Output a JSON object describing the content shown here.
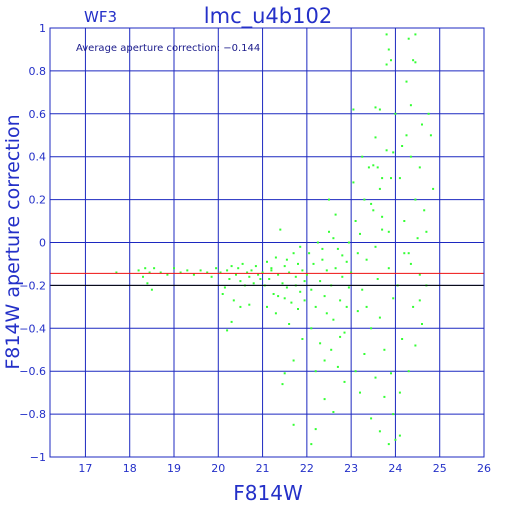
{
  "chart_data": {
    "type": "scatter",
    "header_left": "WF3",
    "title": "lmc_u4b102",
    "annotation": "Average aperture correction: −0.144",
    "xlabel": "F814W",
    "ylabel": "F814W aperture correction",
    "xlim": [
      16.2,
      26
    ],
    "ylim": [
      -1,
      1
    ],
    "x_ticks": [
      17,
      18,
      19,
      20,
      21,
      22,
      23,
      24,
      25,
      26
    ],
    "x_tick_labels": [
      "17",
      "18",
      "19",
      "20",
      "21",
      "22",
      "23",
      "24",
      "25",
      "26"
    ],
    "y_ticks": [
      -1,
      -0.8,
      -0.6,
      -0.4,
      -0.2,
      0,
      0.2,
      0.4,
      0.6,
      0.8,
      1
    ],
    "y_tick_labels": [
      "−1",
      "−0.8",
      "−0.6",
      "−0.4",
      "−0.2",
      "0",
      "0.2",
      "0.4",
      "0.6",
      "0.8",
      "1"
    ],
    "grid": true,
    "colors": {
      "frame": "#1c28c0",
      "grid": "#1c28c0",
      "text": "#2430c8",
      "points": "#33ff33",
      "reference_line": "#ee1111",
      "black_line": "#000000"
    },
    "reference_lines": [
      {
        "y": -0.144,
        "color": "#ee1111"
      },
      {
        "y": -0.2,
        "color": "#000000"
      }
    ],
    "series": [
      {
        "points": [
          [
            17.7,
            -0.14
          ],
          [
            18.2,
            -0.13
          ],
          [
            18.3,
            -0.16
          ],
          [
            18.35,
            -0.12
          ],
          [
            18.4,
            -0.19
          ],
          [
            18.45,
            -0.14
          ],
          [
            18.5,
            -0.22
          ],
          [
            18.55,
            -0.12
          ],
          [
            18.7,
            -0.14
          ],
          [
            18.85,
            -0.15
          ],
          [
            19.0,
            -0.12
          ],
          [
            19.15,
            -0.14
          ],
          [
            19.3,
            -0.13
          ],
          [
            19.45,
            -0.15
          ],
          [
            19.6,
            -0.13
          ],
          [
            19.75,
            -0.14
          ],
          [
            19.85,
            -0.16
          ],
          [
            19.95,
            -0.12
          ],
          [
            20.05,
            -0.14
          ],
          [
            20.1,
            -0.24
          ],
          [
            20.15,
            -0.21
          ],
          [
            20.2,
            -0.13
          ],
          [
            20.25,
            -0.17
          ],
          [
            20.3,
            -0.11
          ],
          [
            20.35,
            -0.27
          ],
          [
            20.4,
            -0.15
          ],
          [
            20.45,
            -0.12
          ],
          [
            20.5,
            -0.18
          ],
          [
            20.55,
            -0.1
          ],
          [
            20.6,
            -0.2
          ],
          [
            20.65,
            -0.14
          ],
          [
            20.7,
            -0.16
          ],
          [
            20.75,
            -0.13
          ],
          [
            20.8,
            -0.19
          ],
          [
            20.85,
            -0.11
          ],
          [
            20.9,
            -0.15
          ],
          [
            20.95,
            -0.17
          ],
          [
            20.2,
            -0.41
          ],
          [
            20.3,
            -0.37
          ],
          [
            20.5,
            -0.3
          ],
          [
            20.7,
            -0.29
          ],
          [
            21.0,
            -0.14
          ],
          [
            21.05,
            -0.2
          ],
          [
            21.1,
            -0.09
          ],
          [
            21.15,
            -0.17
          ],
          [
            21.2,
            -0.13
          ],
          [
            21.25,
            -0.24
          ],
          [
            21.3,
            -0.07
          ],
          [
            21.35,
            -0.15
          ],
          [
            21.4,
            0.06
          ],
          [
            21.45,
            -0.19
          ],
          [
            21.5,
            -0.11
          ],
          [
            21.55,
            -0.21
          ],
          [
            21.6,
            -0.14
          ],
          [
            21.65,
            -0.28
          ],
          [
            21.7,
            -0.05
          ],
          [
            21.75,
            -0.16
          ],
          [
            21.8,
            -0.1
          ],
          [
            21.85,
            -0.23
          ],
          [
            21.9,
            -0.13
          ],
          [
            21.95,
            -0.18
          ],
          [
            21.1,
            -0.3
          ],
          [
            21.3,
            -0.33
          ],
          [
            21.5,
            -0.26
          ],
          [
            21.6,
            -0.38
          ],
          [
            21.8,
            -0.31
          ],
          [
            21.9,
            -0.45
          ],
          [
            21.7,
            -0.55
          ],
          [
            21.5,
            -0.61
          ],
          [
            21.45,
            -0.66
          ],
          [
            21.7,
            -0.85
          ],
          [
            21.2,
            -0.12
          ],
          [
            21.35,
            -0.25
          ],
          [
            21.55,
            -0.08
          ],
          [
            21.75,
            -0.2
          ],
          [
            21.85,
            -0.02
          ],
          [
            21.95,
            -0.27
          ],
          [
            22.0,
            -0.15
          ],
          [
            22.05,
            -0.05
          ],
          [
            22.1,
            -0.22
          ],
          [
            22.15,
            -0.1
          ],
          [
            22.2,
            -0.3
          ],
          [
            22.25,
            0.0
          ],
          [
            22.3,
            -0.18
          ],
          [
            22.35,
            -0.08
          ],
          [
            22.4,
            -0.25
          ],
          [
            22.45,
            -0.13
          ],
          [
            22.5,
            0.05
          ],
          [
            22.55,
            -0.2
          ],
          [
            22.6,
            -0.36
          ],
          [
            22.65,
            -0.12
          ],
          [
            22.7,
            -0.03
          ],
          [
            22.75,
            -0.27
          ],
          [
            22.8,
            -0.16
          ],
          [
            22.85,
            -0.42
          ],
          [
            22.9,
            -0.09
          ],
          [
            22.95,
            -0.21
          ],
          [
            22.1,
            -0.4
          ],
          [
            22.3,
            -0.47
          ],
          [
            22.4,
            -0.55
          ],
          [
            22.55,
            -0.5
          ],
          [
            22.7,
            -0.58
          ],
          [
            22.85,
            -0.65
          ],
          [
            22.2,
            -0.6
          ],
          [
            22.4,
            -0.73
          ],
          [
            22.6,
            -0.79
          ],
          [
            22.1,
            -0.94
          ],
          [
            22.2,
            -0.87
          ],
          [
            22.35,
            -0.03
          ],
          [
            22.6,
            0.02
          ],
          [
            22.8,
            -0.06
          ],
          [
            22.95,
            0.0
          ],
          [
            22.45,
            -0.33
          ],
          [
            22.75,
            -0.44
          ],
          [
            22.9,
            -0.3
          ],
          [
            22.65,
            0.13
          ],
          [
            22.5,
            0.2
          ],
          [
            23.0,
            -0.14
          ],
          [
            23.05,
            0.62
          ],
          [
            23.1,
            0.1
          ],
          [
            23.15,
            -0.32
          ],
          [
            23.2,
            0.04
          ],
          [
            23.25,
            -0.22
          ],
          [
            23.3,
            0.2
          ],
          [
            23.35,
            -0.08
          ],
          [
            23.4,
            0.35
          ],
          [
            23.45,
            -0.4
          ],
          [
            23.5,
            0.15
          ],
          [
            23.55,
            0.49
          ],
          [
            23.6,
            -0.17
          ],
          [
            23.65,
            0.25
          ],
          [
            23.7,
            0.06
          ],
          [
            23.75,
            -0.5
          ],
          [
            23.8,
            0.43
          ],
          [
            23.85,
            -0.12
          ],
          [
            23.9,
            0.3
          ],
          [
            23.95,
            -0.26
          ],
          [
            23.1,
            -0.6
          ],
          [
            23.2,
            -0.7
          ],
          [
            23.3,
            -0.52
          ],
          [
            23.45,
            -0.82
          ],
          [
            23.55,
            -0.63
          ],
          [
            23.65,
            -0.88
          ],
          [
            23.75,
            -0.72
          ],
          [
            23.85,
            -0.94
          ],
          [
            23.9,
            -0.61
          ],
          [
            23.95,
            -0.8
          ],
          [
            23.05,
            0.28
          ],
          [
            23.25,
            0.4
          ],
          [
            23.45,
            0.18
          ],
          [
            23.6,
            0.35
          ],
          [
            23.7,
            0.12
          ],
          [
            23.85,
            0.05
          ],
          [
            23.15,
            -0.05
          ],
          [
            23.35,
            -0.3
          ],
          [
            23.55,
            -0.02
          ],
          [
            23.65,
            -0.35
          ],
          [
            24.0,
            0.6
          ],
          [
            24.05,
            -0.2
          ],
          [
            24.1,
            0.3
          ],
          [
            24.15,
            -0.45
          ],
          [
            24.2,
            0.1
          ],
          [
            24.25,
            0.5
          ],
          [
            24.3,
            -0.05
          ],
          [
            24.35,
            0.4
          ],
          [
            24.4,
            -0.3
          ],
          [
            24.45,
            0.2
          ],
          [
            24.5,
            0.02
          ],
          [
            24.55,
            -0.15
          ],
          [
            24.6,
            0.55
          ],
          [
            24.65,
            0.15
          ],
          [
            24.7,
            -0.2
          ],
          [
            24.75,
            0.6
          ],
          [
            24.8,
            0.5
          ],
          [
            24.85,
            0.25
          ],
          [
            24.1,
            -0.7
          ],
          [
            24.3,
            -0.6
          ],
          [
            24.45,
            -0.48
          ],
          [
            24.6,
            -0.38
          ],
          [
            24.1,
            -0.9
          ],
          [
            24.0,
            -0.92
          ],
          [
            24.2,
            -0.05
          ],
          [
            24.35,
            -0.1
          ],
          [
            24.55,
            0.35
          ],
          [
            24.7,
            0.05
          ],
          [
            24.25,
            0.75
          ],
          [
            24.4,
            0.85
          ],
          [
            24.45,
            0.84
          ],
          [
            24.3,
            0.95
          ],
          [
            24.45,
            0.97
          ],
          [
            24.35,
            0.64
          ],
          [
            24.15,
            0.45
          ],
          [
            24.55,
            -0.27
          ],
          [
            23.8,
            0.97
          ],
          [
            23.85,
            0.9
          ],
          [
            23.9,
            0.85
          ],
          [
            23.8,
            0.83
          ],
          [
            23.55,
            0.63
          ],
          [
            23.65,
            0.62
          ],
          [
            23.95,
            0.42
          ],
          [
            23.7,
            0.3
          ],
          [
            23.5,
            0.36
          ]
        ]
      }
    ]
  }
}
